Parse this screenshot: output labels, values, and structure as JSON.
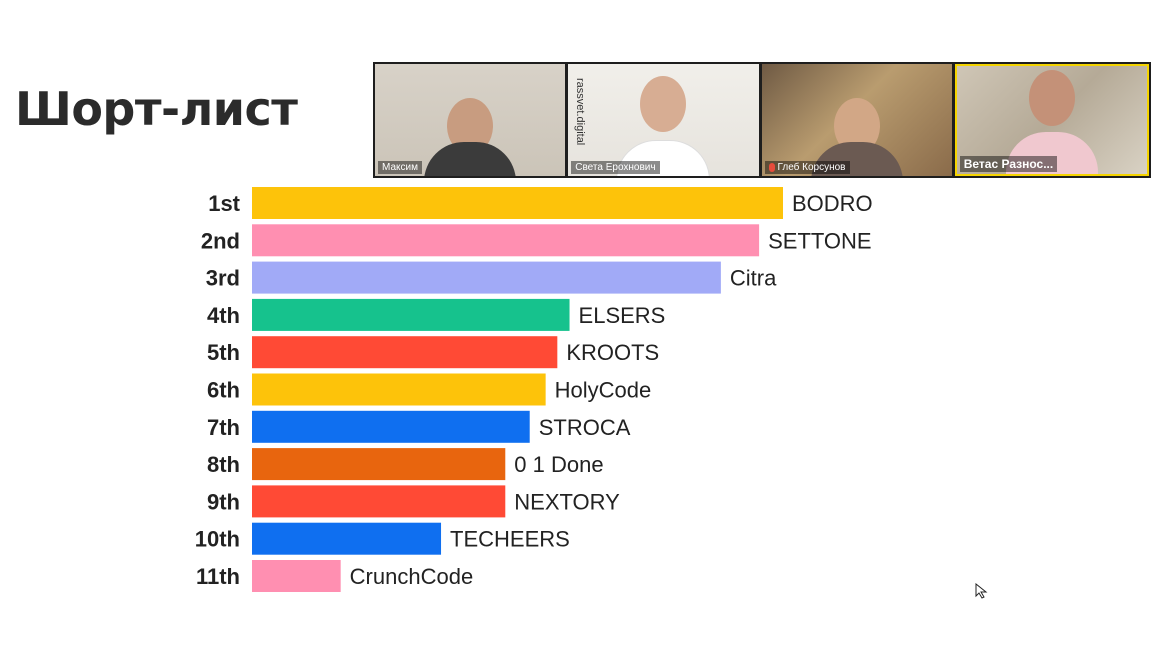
{
  "slide": {
    "title": "Шорт-лист"
  },
  "video_call": {
    "participants": [
      {
        "name": "Максим",
        "tile_color": "#cbc4b8"
      },
      {
        "name": "Света Ерохнович",
        "tile_color": "#eceae4",
        "watermark": "rassvet.digital"
      },
      {
        "name": "Глеб Корсунов",
        "tile_color": "#8a6b4a",
        "muted": true
      },
      {
        "name": "Ветас Разнос...",
        "tile_color": "#c4b9a6",
        "active_speaker": true
      }
    ]
  },
  "chart_data": {
    "type": "bar",
    "orientation": "horizontal",
    "categories": [
      "1st",
      "2nd",
      "3rd",
      "4th",
      "5th",
      "6th",
      "7th",
      "8th",
      "9th",
      "10th",
      "11th"
    ],
    "bar_labels": [
      "BODRO",
      "SETTONE",
      "Citra",
      "ELSERS",
      "KROOTS",
      "HolyCode",
      "STROCA",
      "0 1 Done",
      "NEXTORY",
      "TECHEERS",
      "CrunchCode"
    ],
    "values": [
      100,
      95.5,
      88.3,
      59.8,
      57.5,
      55.3,
      52.3,
      47.7,
      47.7,
      35.6,
      16.7
    ],
    "colors": [
      "#fdc30a",
      "#ff8fb1",
      "#a1aaf7",
      "#16c28d",
      "#ff4a35",
      "#fdc30a",
      "#0f6ff0",
      "#e8650e",
      "#ff4a35",
      "#0f6ff0",
      "#ff8fb1"
    ],
    "grid": false
  }
}
